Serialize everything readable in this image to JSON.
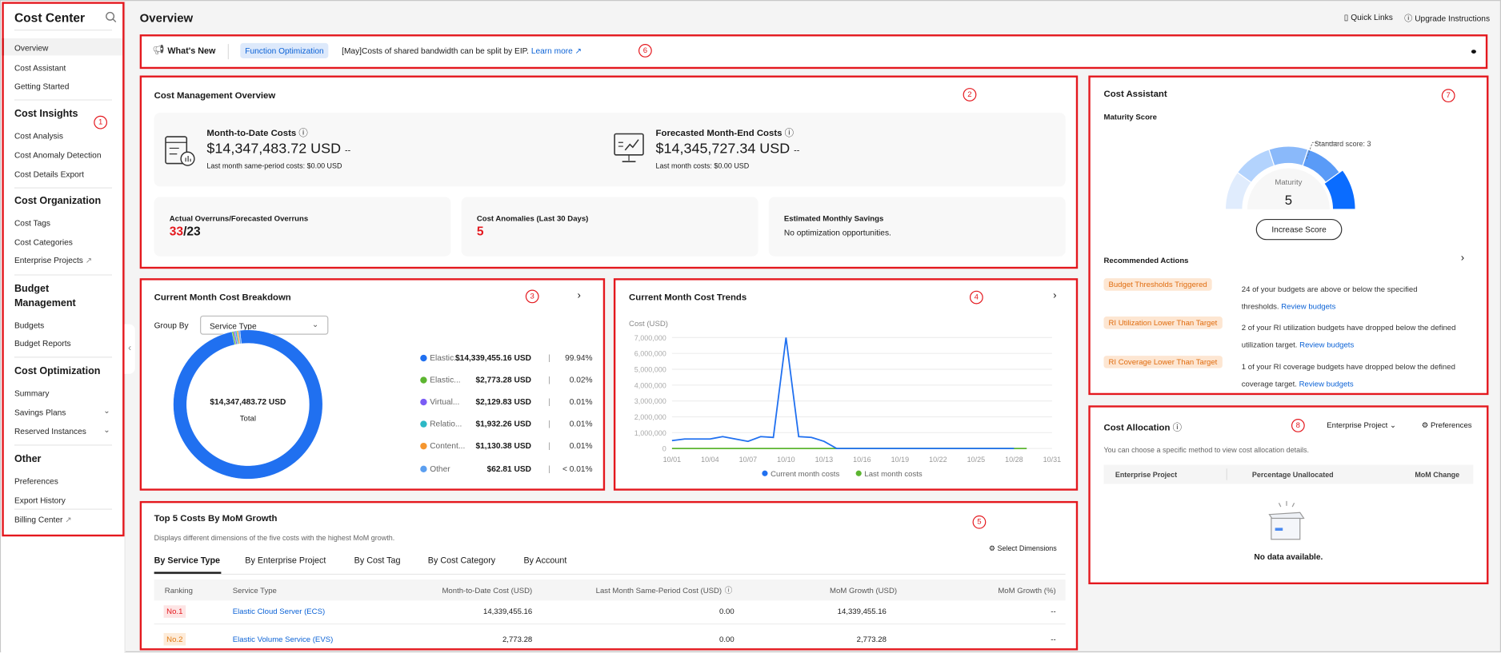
{
  "sidebar": {
    "title": "Cost Center",
    "items": {
      "overview": "Overview",
      "cost_assistant": "Cost Assistant",
      "getting_started": "Getting Started",
      "cost_analysis": "Cost Analysis",
      "cost_anomaly": "Cost Anomaly Detection",
      "cost_export": "Cost Details Export",
      "cost_tags": "Cost Tags",
      "cost_categories": "Cost Categories",
      "enterprise_projects": "Enterprise Projects",
      "budgets": "Budgets",
      "budget_reports": "Budget Reports",
      "summary": "Summary",
      "savings_plans": "Savings Plans",
      "reserved_instances": "Reserved Instances",
      "preferences": "Preferences",
      "export_history": "Export History",
      "billing_center": "Billing Center"
    },
    "sections": {
      "insights": "Cost Insights",
      "organization": "Cost Organization",
      "budget1": "Budget",
      "budget2": "Management",
      "optimization": "Cost Optimization",
      "other": "Other"
    }
  },
  "header": {
    "title": "Overview",
    "quick_links": "Quick Links",
    "upgrade": "Upgrade Instructions"
  },
  "whats_new": {
    "label": "What's New",
    "badge": "Function Optimization",
    "text": "[May]Costs of shared bandwidth can be split by EIP.",
    "link": "Learn more"
  },
  "overview": {
    "title": "Cost Management Overview",
    "mtd_label": "Month-to-Date Costs",
    "mtd_value": "$14,347,483.72 USD",
    "mtd_trend": "--",
    "mtd_sub": "Last month same-period costs: $0.00 USD",
    "fc_label": "Forecasted Month-End Costs",
    "fc_value": "$14,345,727.34 USD",
    "fc_trend": "--",
    "fc_sub": "Last month costs: $0.00 USD",
    "overrun_label": "Actual Overruns/Forecasted Overruns",
    "overrun_actual": "33",
    "overrun_forecast": "/23",
    "anomaly_label": "Cost Anomalies (Last 30 Days)",
    "anomaly_value": "5",
    "savings_label": "Estimated Monthly Savings",
    "savings_value": "No optimization opportunities."
  },
  "breakdown": {
    "title": "Current Month Cost Breakdown",
    "group_by": "Group By",
    "group_value": "Service Type",
    "total_value": "$14,347,483.72 USD",
    "total_label": "Total",
    "items": [
      {
        "name": "Elastic...",
        "value": "$14,339,455.16 USD",
        "pct": "99.94%",
        "share": 99.94,
        "color": "#2070f0"
      },
      {
        "name": "Elastic...",
        "value": "$2,773.28 USD",
        "pct": "0.02%",
        "share": 0.02,
        "color": "#5cb530"
      },
      {
        "name": "Virtual...",
        "value": "$2,129.83 USD",
        "pct": "0.01%",
        "share": 0.01,
        "color": "#7b5cf5"
      },
      {
        "name": "Relatio...",
        "value": "$1,932.26 USD",
        "pct": "0.01%",
        "share": 0.01,
        "color": "#2cb8c5"
      },
      {
        "name": "Content...",
        "value": "$1,130.38 USD",
        "pct": "0.01%",
        "share": 0.01,
        "color": "#f5962e"
      },
      {
        "name": "Other",
        "value": "$62.81 USD",
        "pct": "< 0.01%",
        "share": 0.005,
        "color": "#5b9ff0"
      }
    ]
  },
  "chart_data": {
    "type": "line",
    "title": "Current Month Cost Trends",
    "ylabel": "Cost (USD)",
    "ylim": [
      0,
      7000000
    ],
    "yticks": [
      "0",
      "1,000,000",
      "2,000,000",
      "3,000,000",
      "4,000,000",
      "5,000,000",
      "6,000,000",
      "7,000,000"
    ],
    "xticks": [
      "10/01",
      "10/04",
      "10/07",
      "10/10",
      "10/13",
      "10/16",
      "10/19",
      "10/22",
      "10/25",
      "10/28",
      "10/31"
    ],
    "x": [
      "10/01",
      "10/02",
      "10/03",
      "10/04",
      "10/05",
      "10/06",
      "10/07",
      "10/08",
      "10/09",
      "10/10",
      "10/11",
      "10/12",
      "10/13",
      "10/14",
      "10/15",
      "10/16",
      "10/17",
      "10/18",
      "10/19",
      "10/20",
      "10/21",
      "10/22",
      "10/23",
      "10/24",
      "10/25",
      "10/26",
      "10/27",
      "10/28",
      "10/29"
    ],
    "legend_position": "bottom",
    "grid": true,
    "series": [
      {
        "name": "Current month costs",
        "color": "#2070f0",
        "values": [
          500000,
          600000,
          600000,
          600000,
          750000,
          600000,
          450000,
          750000,
          700000,
          7000000,
          750000,
          700000,
          450000,
          0,
          0,
          0,
          0,
          0,
          0,
          0,
          0,
          0,
          0,
          0,
          0,
          0,
          0,
          0,
          null
        ]
      },
      {
        "name": "Last month costs",
        "color": "#5cb530",
        "values": [
          0,
          0,
          0,
          0,
          0,
          0,
          0,
          0,
          0,
          0,
          0,
          0,
          0,
          0,
          0,
          0,
          0,
          0,
          0,
          0,
          0,
          0,
          0,
          0,
          0,
          0,
          0,
          0,
          0
        ]
      }
    ]
  },
  "top5": {
    "title": "Top 5 Costs By MoM Growth",
    "desc": "Displays different dimensions of the five costs with the highest MoM growth.",
    "select_dims": "Select Dimensions",
    "tabs": [
      "By Service Type",
      "By Enterprise Project",
      "By Cost Tag",
      "By Cost Category",
      "By Account"
    ],
    "columns": [
      "Ranking",
      "Service Type",
      "Month-to-Date Cost (USD)",
      "Last Month Same-Period Cost (USD)",
      "MoM Growth (USD)",
      "MoM Growth (%)"
    ],
    "rows": [
      {
        "rank": "No.1",
        "service": "Elastic Cloud Server (ECS)",
        "mtd": "14,339,455.16",
        "last": "0.00",
        "growth": "14,339,455.16",
        "pct": "--"
      },
      {
        "rank": "No.2",
        "service": "Elastic Volume Service (EVS)",
        "mtd": "2,773.28",
        "last": "0.00",
        "growth": "2,773.28",
        "pct": "--"
      }
    ]
  },
  "assistant": {
    "title": "Cost Assistant",
    "maturity_title": "Maturity Score",
    "standard": "Standard score: 3",
    "maturity_label": "Maturity",
    "maturity_value": "5",
    "maturity_max": 5,
    "increase": "Increase Score",
    "rec_title": "Recommended Actions",
    "actions": [
      {
        "tag": "Budget Thresholds Triggered",
        "text1": "24 of your budgets are above or below the specified",
        "text2": "thresholds.",
        "link": "Review budgets"
      },
      {
        "tag": "RI Utilization Lower Than Target",
        "text1": "2 of your RI utilization budgets have dropped below the defined",
        "text2": "utilization target.",
        "link": "Review budgets"
      },
      {
        "tag": "RI Coverage Lower Than Target",
        "text1": "1 of your RI coverage budgets have dropped below the defined",
        "text2": "coverage target.",
        "link": "Review budgets"
      }
    ]
  },
  "allocation": {
    "title": "Cost Allocation",
    "dimension": "Enterprise Project",
    "preferences": "Preferences",
    "desc": "You can choose a specific method to view cost allocation details.",
    "columns": [
      "Enterprise Project",
      "Percentage Unallocated",
      "MoM Change"
    ],
    "empty": "No data available."
  },
  "annotations": [
    "1",
    "2",
    "3",
    "4",
    "5",
    "6",
    "7",
    "8"
  ]
}
